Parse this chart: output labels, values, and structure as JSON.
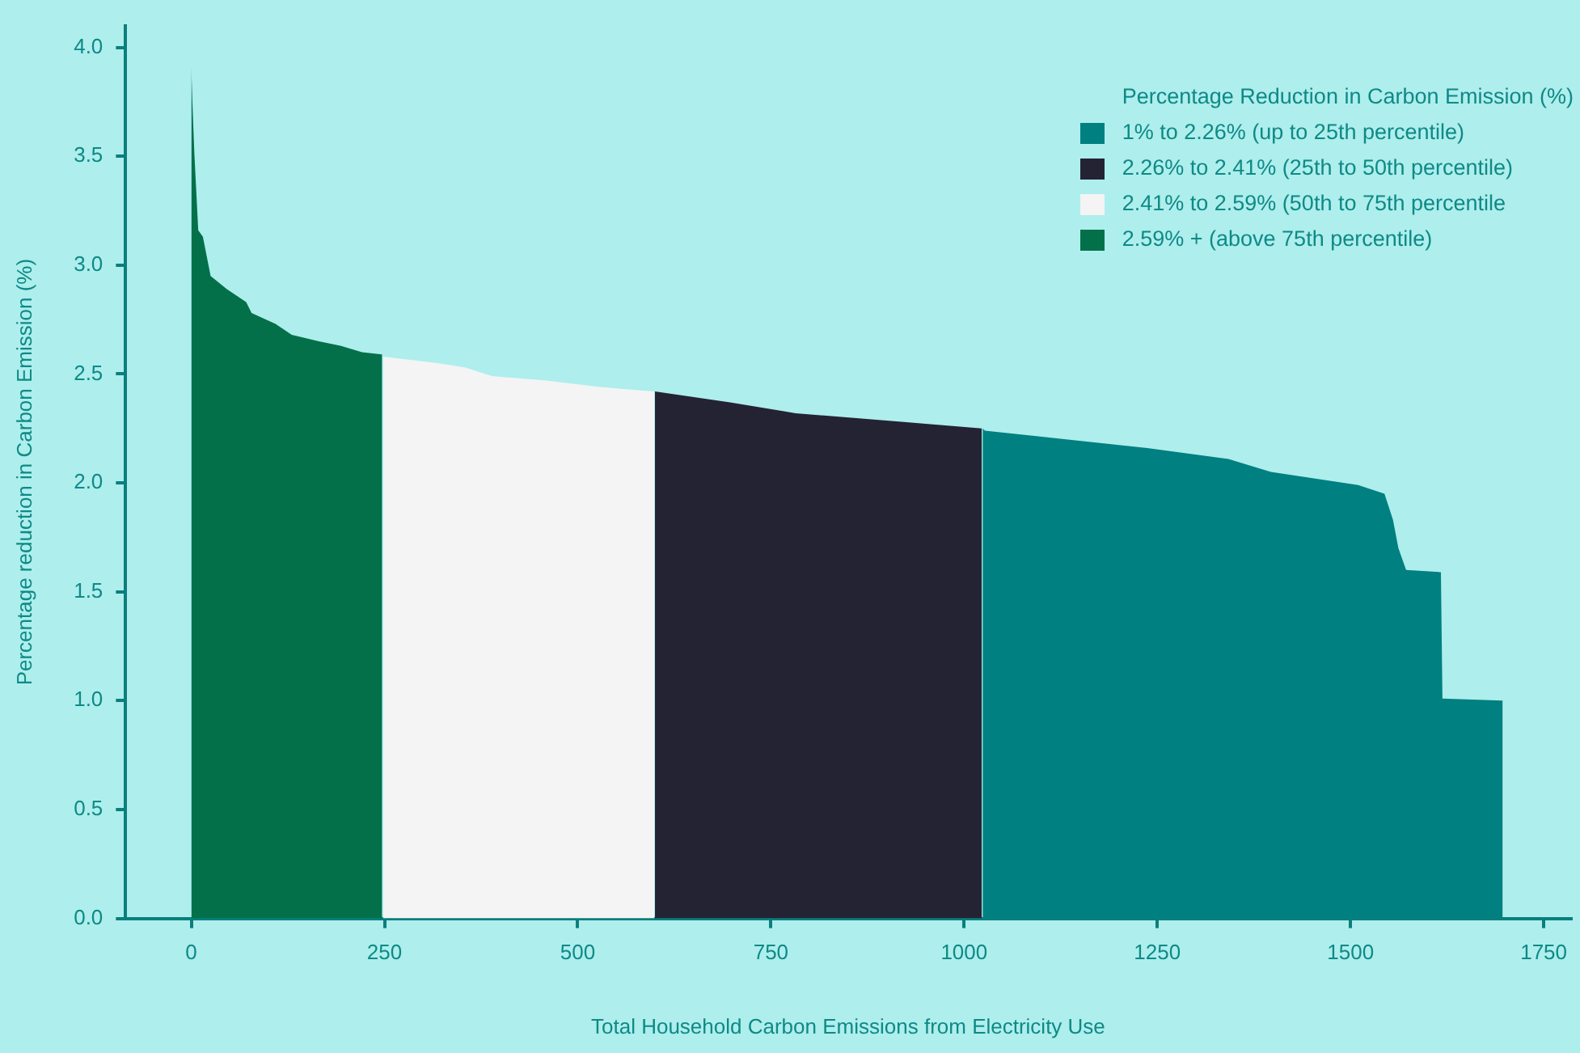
{
  "chart_data": {
    "type": "area",
    "xlabel": "Total Household Carbon Emissions from Electricity Use",
    "ylabel": "Percentage reduction in Carbon Emission (%)",
    "legend_title": "Percentage Reduction in Carbon Emission (%)",
    "legend": "top right",
    "grid": false,
    "marker": "none",
    "xlim": [
      -85,
      1785
    ],
    "xticks": [
      0,
      250,
      500,
      750,
      1000,
      1250,
      1500,
      1750
    ],
    "ylim": [
      0,
      4.1
    ],
    "yticks": [
      {
        "value": 0,
        "label": "0.0"
      },
      0.5,
      {
        "value": 1,
        "label": "1.0"
      },
      1.5,
      {
        "value": 2,
        "label": "2.0"
      },
      2.5,
      {
        "value": 3,
        "label": "3.0"
      },
      3.5,
      {
        "value": 4,
        "label": "4.0"
      }
    ],
    "series": [
      {
        "name": "1% to 2.26% (up to 25th percentile)",
        "color": "#008080",
        "x": [
          1024,
          1027,
          1132,
          1237,
          1342,
          1397,
          1510,
          1544,
          1555,
          1562,
          1572,
          1617,
          1619,
          1697
        ],
        "values": [
          2.25,
          2.24,
          2.2,
          2.16,
          2.11,
          2.05,
          1.99,
          1.95,
          1.83,
          1.7,
          1.6,
          1.59,
          1.01,
          1.0
        ]
      },
      {
        "name": "2.26% to 2.41% (25th to 50th percentile)",
        "color": "#242333",
        "x": [
          600,
          601,
          697,
          782,
          922,
          1023
        ],
        "values": [
          2.42,
          2.42,
          2.37,
          2.32,
          2.28,
          2.25
        ]
      },
      {
        "name": "2.41% to 2.59% (50th to 75th percentile",
        "color": "#f4f4f4",
        "x": [
          248,
          319,
          354,
          389,
          459,
          529,
          599
        ],
        "values": [
          2.58,
          2.55,
          2.53,
          2.49,
          2.47,
          2.44,
          2.42
        ]
      },
      {
        "name": "2.59% + (above 75th percentile)",
        "color": "#03704a",
        "x": [
          0,
          1.5,
          4,
          9,
          15,
          25,
          46,
          71,
          78,
          109,
          130,
          165,
          193,
          221,
          247
        ],
        "values": [
          3.91,
          3.74,
          3.51,
          3.16,
          3.13,
          2.95,
          2.89,
          2.83,
          2.78,
          2.73,
          2.68,
          2.65,
          2.63,
          2.6,
          2.59
        ]
      }
    ]
  }
}
